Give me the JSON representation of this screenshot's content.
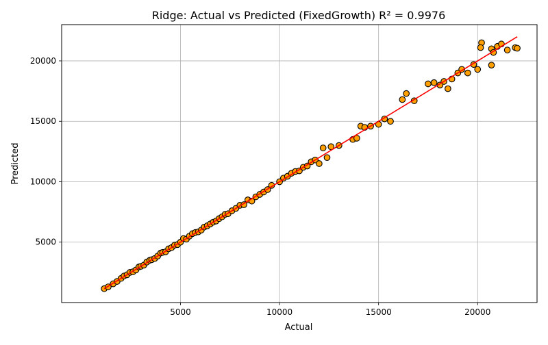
{
  "chart_data": {
    "type": "scatter",
    "title": "Ridge: Actual vs Predicted (FixedGrowth) R² = 0.9976",
    "xlabel": "Actual",
    "ylabel": "Predicted",
    "xlim": [
      -1000,
      23000
    ],
    "ylim": [
      0,
      23000
    ],
    "xticks": [
      5000,
      10000,
      15000,
      20000
    ],
    "yticks": [
      5000,
      10000,
      15000,
      20000
    ],
    "grid": true,
    "legend": "none",
    "colors": {
      "points_fill": "#ff9f00",
      "points_edge": "#000000",
      "fit_line": "#ff0000",
      "grid": "#b0b0b0"
    },
    "series": [
      {
        "kind": "points",
        "x": [
          1150,
          1350,
          1600,
          1800,
          2000,
          2150,
          2300,
          2450,
          2600,
          2750,
          2900,
          3000,
          3150,
          3300,
          3450,
          3550,
          3700,
          3850,
          4000,
          4100,
          4250,
          4400,
          4550,
          4700,
          4850,
          5000,
          5150,
          5300,
          5450,
          5600,
          5750,
          5900,
          6050,
          6200,
          6350,
          6500,
          6650,
          6800,
          6950,
          7100,
          7250,
          7400,
          7600,
          7800,
          8000,
          8200,
          8400,
          8600,
          8800,
          9000,
          9200,
          9400,
          9600,
          10000,
          10200,
          10400,
          10600,
          10800,
          11000,
          11200,
          11400,
          11600,
          11800,
          12000,
          12200,
          12400,
          12600,
          13000,
          13700,
          13900,
          14100,
          14300,
          14600,
          15000,
          15300,
          15600,
          16200,
          16400,
          16800,
          17500,
          17800,
          18100,
          18300,
          18500,
          18700,
          19000,
          19200,
          19500,
          19800,
          20000,
          20200,
          20700,
          20800,
          21000,
          21200,
          21500,
          21900,
          22000,
          20150,
          20700
        ],
        "y": [
          1150,
          1300,
          1550,
          1750,
          2000,
          2200,
          2300,
          2500,
          2550,
          2700,
          2950,
          3000,
          3100,
          3350,
          3500,
          3550,
          3650,
          3850,
          4100,
          4150,
          4200,
          4450,
          4550,
          4750,
          4800,
          5000,
          5300,
          5250,
          5500,
          5700,
          5800,
          5850,
          6000,
          6250,
          6350,
          6500,
          6650,
          6750,
          6950,
          7100,
          7300,
          7350,
          7600,
          7800,
          8050,
          8100,
          8500,
          8400,
          8750,
          8950,
          9150,
          9350,
          9700,
          10000,
          10300,
          10450,
          10700,
          10850,
          10900,
          11200,
          11300,
          11650,
          11800,
          11500,
          12800,
          12000,
          12900,
          13000,
          13500,
          13600,
          14600,
          14500,
          14600,
          14750,
          15200,
          15000,
          16800,
          17300,
          16700,
          18100,
          18200,
          18000,
          18300,
          17700,
          18500,
          19000,
          19300,
          19000,
          19700,
          19300,
          21500,
          21000,
          20700,
          21200,
          21400,
          20900,
          21100,
          21050,
          21100,
          19650
        ]
      },
      {
        "kind": "line",
        "x": [
          1150,
          22000
        ],
        "y": [
          1150,
          22000
        ]
      }
    ]
  }
}
